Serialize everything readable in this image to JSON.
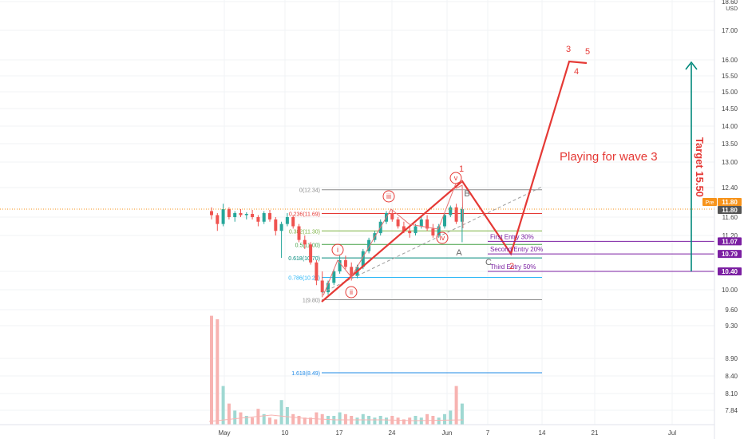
{
  "chart_data": {
    "type": "candlestick",
    "currency": "USD",
    "price_axis_ticks": [
      "18.60",
      "17.00",
      "16.00",
      "15.50",
      "15.00",
      "14.50",
      "14.00",
      "13.50",
      "13.00",
      "12.40",
      "11.60",
      "11.20",
      "10.40",
      "10.00",
      "9.60",
      "9.30",
      "8.90",
      "8.40",
      "8.10",
      "7.84"
    ],
    "date_axis_ticks": [
      "May",
      "10",
      "17",
      "24",
      "Jun",
      "7",
      "14",
      "21",
      "Jul"
    ],
    "price_badges": [
      {
        "text": "11.80",
        "label": "Pre",
        "price": 11.8,
        "color": "#f7931a"
      },
      {
        "text": "11.80",
        "price": 11.8,
        "color": "#555555"
      },
      {
        "text": "11.07",
        "price": 11.07,
        "color": "#7b1fa2"
      },
      {
        "text": "10.79",
        "price": 10.79,
        "color": "#7b1fa2"
      },
      {
        "text": "10.40",
        "price": 10.4,
        "color": "#7b1fa2"
      }
    ],
    "fib_levels": [
      {
        "label": "0(12.34)",
        "price": 12.34,
        "color": "#8c8c8c"
      },
      {
        "label": "0.236(11.69)",
        "price": 11.69,
        "color": "#e53935"
      },
      {
        "label": "0.382(11.30)",
        "price": 11.3,
        "color": "#7cb342"
      },
      {
        "label": "0.5(11.00)",
        "price": 11.0,
        "color": "#43a047"
      },
      {
        "label": "0.618(10.70)",
        "price": 10.7,
        "color": "#00897b"
      },
      {
        "label": "0.786(10.27)",
        "price": 10.27,
        "color": "#29b6f6"
      },
      {
        "label": "1(9.80)",
        "price": 9.8,
        "color": "#8c8c8c"
      },
      {
        "label": "1.618(8.49)",
        "price": 8.49,
        "color": "#1e88e5"
      }
    ],
    "entries": [
      {
        "text": "First Entry 30%",
        "price": 11.07
      },
      {
        "text": "Second Entry 20%",
        "price": 10.79
      },
      {
        "text": "Third Entry 50%",
        "price": 10.4
      }
    ],
    "wave_labels": {
      "circled": [
        "i",
        "ii",
        "iii",
        "iv",
        "v"
      ],
      "impulse_red": [
        "1",
        "3",
        "4",
        "5"
      ],
      "corrective_gray": [
        "A",
        "B",
        "C"
      ],
      "projected_2": "2"
    },
    "annotations": {
      "main_text": "Playing for wave 3",
      "target_text": "Target 15.50"
    },
    "colors": {
      "up": "#26a69a",
      "down": "#ef5350",
      "wave_line": "#e53935",
      "entry": "#7b1fa2",
      "target": "#00897b"
    },
    "candles": [
      [
        11.75,
        11.85,
        11.55,
        11.65
      ],
      [
        11.65,
        11.7,
        11.3,
        11.45
      ],
      [
        11.45,
        11.95,
        11.4,
        11.8
      ],
      [
        11.8,
        11.85,
        11.55,
        11.6
      ],
      [
        11.6,
        11.75,
        11.5,
        11.7
      ],
      [
        11.7,
        11.8,
        11.6,
        11.65
      ],
      [
        11.65,
        11.72,
        11.55,
        11.68
      ],
      [
        11.68,
        11.78,
        11.55,
        11.6
      ],
      [
        11.6,
        11.65,
        11.4,
        11.5
      ],
      [
        11.5,
        11.75,
        11.45,
        11.7
      ],
      [
        11.7,
        11.78,
        11.5,
        11.55
      ],
      [
        11.55,
        11.6,
        11.2,
        11.3
      ],
      [
        11.3,
        11.5,
        10.7,
        11.45
      ],
      [
        11.45,
        11.7,
        11.4,
        11.6
      ],
      [
        11.6,
        11.65,
        11.35,
        11.4
      ],
      [
        11.4,
        11.45,
        11.05,
        11.1
      ],
      [
        11.1,
        11.2,
        10.9,
        11.0
      ],
      [
        11.0,
        11.05,
        10.55,
        10.6
      ],
      [
        10.6,
        10.65,
        10.1,
        10.2
      ],
      [
        10.2,
        10.4,
        9.85,
        9.95
      ],
      [
        9.95,
        10.2,
        9.9,
        10.15
      ],
      [
        10.15,
        10.45,
        10.1,
        10.4
      ],
      [
        10.4,
        10.75,
        10.35,
        10.65
      ],
      [
        10.65,
        10.75,
        10.45,
        10.5
      ],
      [
        10.5,
        10.6,
        10.2,
        10.3
      ],
      [
        10.3,
        10.55,
        10.25,
        10.5
      ],
      [
        10.5,
        10.9,
        10.45,
        10.85
      ],
      [
        10.85,
        11.15,
        10.8,
        11.1
      ],
      [
        11.1,
        11.3,
        11.05,
        11.25
      ],
      [
        11.25,
        11.55,
        11.2,
        11.5
      ],
      [
        11.5,
        11.75,
        11.45,
        11.7
      ],
      [
        11.7,
        11.78,
        11.5,
        11.55
      ],
      [
        11.55,
        11.6,
        11.35,
        11.4
      ],
      [
        11.4,
        11.5,
        11.25,
        11.3
      ],
      [
        11.3,
        11.4,
        11.15,
        11.25
      ],
      [
        11.25,
        11.45,
        11.2,
        11.4
      ],
      [
        11.4,
        11.6,
        11.35,
        11.55
      ],
      [
        11.55,
        11.65,
        11.3,
        11.35
      ],
      [
        11.35,
        11.45,
        11.15,
        11.2
      ],
      [
        11.2,
        11.45,
        11.15,
        11.4
      ],
      [
        11.4,
        11.7,
        11.35,
        11.65
      ],
      [
        11.65,
        11.9,
        11.6,
        11.85
      ],
      [
        11.85,
        11.95,
        11.45,
        11.5
      ],
      [
        11.5,
        11.85,
        11.05,
        11.8
      ]
    ],
    "volumes": [
      62,
      60,
      22,
      12,
      8,
      7,
      5,
      4,
      9,
      6,
      4,
      3,
      14,
      10,
      6,
      5,
      4,
      4,
      7,
      6,
      5,
      5,
      7,
      6,
      5,
      4,
      6,
      5,
      4,
      5,
      4,
      5,
      4,
      3,
      4,
      5,
      4,
      6,
      5,
      4,
      6,
      8,
      22,
      12
    ]
  }
}
